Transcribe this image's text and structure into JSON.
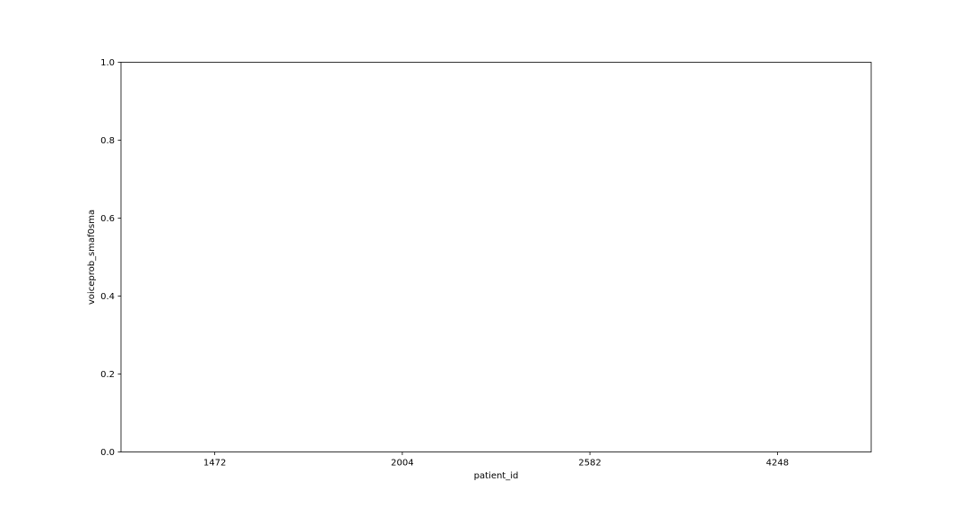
{
  "chart_data": {
    "type": "bar",
    "title": "",
    "xlabel": "patient_id",
    "ylabel": "voiceprob_smaf0sma",
    "categories": [
      "1472",
      "2004",
      "2582",
      "4248"
    ],
    "values": [
      0,
      0,
      0,
      0
    ],
    "ylim": [
      0,
      1
    ],
    "yticks": [
      "0.0",
      "0.2",
      "0.4",
      "0.6",
      "0.8",
      "1.0"
    ],
    "grid": false,
    "legend": "none"
  }
}
